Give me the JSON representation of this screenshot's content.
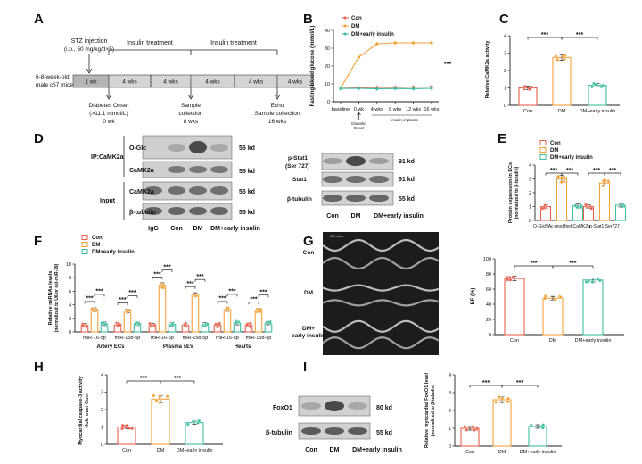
{
  "colors": {
    "con": "#e8624f",
    "dm": "#f2a23a",
    "ins": "#3fbfa0",
    "axis": "#222222"
  },
  "panels": {
    "A": "A",
    "B": "B",
    "C": "C",
    "D": "D",
    "E": "E",
    "F": "F",
    "G": "G",
    "H": "H",
    "I": "I"
  },
  "timeline": {
    "stz": "STZ injection",
    "stz_dose": "(i.p., 50 mg/kg/d×5)",
    "mice_line1": "6-8-week-old",
    "mice_line2": "male c57 mice",
    "treat1": "Insulin treatment",
    "treat2": "Insulin treatment",
    "seg_1wk": "1 wk",
    "seg_4wks": [
      "4 wks",
      "4 wks",
      "4 wks",
      "4 wks",
      "4 wks"
    ],
    "onset1": "Diabetes Onset",
    "onset2": "(>11.1 mmol/L)",
    "onset3": "0 wk",
    "sample1": "Sample",
    "sample2": "collection",
    "sample3": "8 wks",
    "echo1": "Echo",
    "echo2": "Sample collection",
    "echo3": "16 wks"
  },
  "legend": {
    "con": "Con",
    "dm": "DM",
    "ins": "DM+early insulin"
  },
  "blots": {
    "ip_label": "IP:CaMK2a",
    "input_label": "Input",
    "oglc": "O-Glc",
    "camk2a": "CaMK2a",
    "camk2a_input": "CaMK2a",
    "btub": "β-tubulin",
    "kd55": [
      "55 kd",
      "55 kd",
      "55 kd",
      "55 kd"
    ],
    "lanes_left": [
      "IgG",
      "Con",
      "DM",
      "DM+early insulin"
    ],
    "pstat_1": "p-Stat1",
    "pstat_2": "(Ser 727)",
    "stat1": "Stat1",
    "btub2": "β-tubulin",
    "kd_mid": [
      "91 kd",
      "91 kd",
      "55 kd"
    ],
    "lanes_mid": [
      "Con",
      "DM",
      "DM+early insulin"
    ],
    "foxo1": "FoxO1",
    "btub3": "β-tubulin",
    "kd_i": [
      "80 kd",
      "55 kd"
    ],
    "lanes_i": [
      "Con",
      "DM",
      "DM+early insulin"
    ]
  },
  "echo": {
    "rows": [
      "Con",
      "DM",
      "DM+",
      "early insulin"
    ],
    "scale": "100 msec"
  },
  "sig": "***",
  "chart_data": [
    {
      "panel": "B",
      "type": "line",
      "ylabel": "Fasting blood glucose (mmol/L)",
      "categories": [
        "baseline",
        "0 wk",
        "4 wks",
        "8 wks",
        "12 wks",
        "16 wks"
      ],
      "ylim": [
        0,
        40
      ],
      "yticks": [
        "0",
        "10",
        "20",
        "30",
        "40"
      ],
      "annotation_1": "Diabetic",
      "annotation_2": "Onset",
      "annotation_3": "Insulin implants",
      "series": [
        {
          "name": "Con",
          "values": [
            7.5,
            7.8,
            8.0,
            8.1,
            8.2,
            8.3
          ]
        },
        {
          "name": "DM",
          "values": [
            7.6,
            25.0,
            32.5,
            33.0,
            33.0,
            33.0
          ]
        },
        {
          "name": "DM+early insulin",
          "values": [
            7.4,
            7.5,
            7.2,
            7.4,
            7.3,
            7.5
          ]
        }
      ]
    },
    {
      "panel": "C",
      "type": "bar",
      "ylabel": "Relative CaMK2a activity",
      "categories": [
        "Con",
        "DM",
        "DM+early insulin"
      ],
      "values": [
        1.0,
        2.75,
        1.15
      ],
      "ylim": [
        0,
        4
      ],
      "yticks": [
        "0",
        "1",
        "2",
        "3",
        "4"
      ]
    },
    {
      "panel": "E",
      "type": "bar",
      "ylabel_1": "Protein expression in ECs",
      "ylabel_2": "(normalized to β-tubulin)",
      "groups": [
        "O-GlcNAc-modified CaMK2a",
        "p-Stat1  Ser727"
      ],
      "series": [
        {
          "name": "Con",
          "values": [
            1.0,
            1.0
          ]
        },
        {
          "name": "DM",
          "values": [
            3.0,
            2.7
          ]
        },
        {
          "name": "DM+early insulin",
          "values": [
            1.05,
            1.1
          ]
        }
      ],
      "ylim": [
        0,
        4
      ],
      "yticks": [
        "0",
        "1",
        "2",
        "3",
        "4"
      ]
    },
    {
      "panel": "F",
      "type": "bar",
      "ylabel_1": "Relative miRNAs levels",
      "ylabel_2": "(normalized to U6 or cel-miR-39)",
      "mirs": [
        "miR-16-5p",
        "miR-15b-5p",
        "miR-16-5p",
        "miR-15b-5p",
        "miR-16-5p",
        "miR-15b-5p"
      ],
      "groups": [
        "Artery ECs",
        "Plasma sEV",
        "Hearts"
      ],
      "series": [
        {
          "name": "Con",
          "values": [
            1.0,
            1.0,
            1.0,
            1.0,
            1.0,
            1.0
          ]
        },
        {
          "name": "DM",
          "values": [
            3.3,
            3.1,
            6.9,
            5.5,
            3.3,
            3.2
          ]
        },
        {
          "name": "DM+early insulin",
          "values": [
            1.2,
            1.2,
            1.1,
            1.1,
            1.3,
            1.3
          ]
        }
      ],
      "ylim": [
        0,
        10
      ],
      "yticks": [
        "0",
        "2",
        "4",
        "6",
        "8",
        "10"
      ]
    },
    {
      "panel": "G",
      "type": "bar",
      "ylabel": "EF (%)",
      "categories": [
        "Con",
        "DM",
        "DM+early insulin"
      ],
      "values": [
        74,
        48,
        72
      ],
      "ylim": [
        0,
        100
      ],
      "yticks": [
        "0",
        "20",
        "40",
        "60",
        "80",
        "100"
      ]
    },
    {
      "panel": "H",
      "type": "bar",
      "ylabel_1": "Myocardial caspase-3 activity",
      "ylabel_2": "(fold over Con)",
      "categories": [
        "Con",
        "DM",
        "DM+early insulin"
      ],
      "values": [
        1.0,
        2.6,
        1.25
      ],
      "ylim": [
        0,
        4
      ],
      "yticks": [
        "0",
        "1",
        "2",
        "3",
        "4"
      ]
    },
    {
      "panel": "I",
      "type": "bar",
      "ylabel_1": "Relative myocardial FoxO1 level",
      "ylabel_2": "(normalized to β-tubulin)",
      "categories": [
        "Con",
        "DM",
        "DM+early insulin"
      ],
      "values": [
        1.0,
        2.6,
        1.1
      ],
      "ylim": [
        0,
        4
      ],
      "yticks": [
        "0",
        "1",
        "2",
        "3",
        "4"
      ]
    }
  ]
}
